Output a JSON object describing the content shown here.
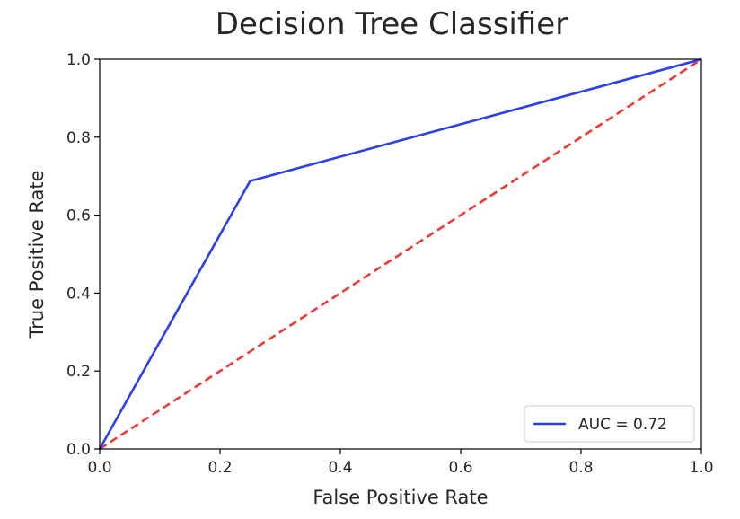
{
  "chart_data": {
    "type": "line",
    "title": "Decision Tree Classifier",
    "xlabel": "False Positive Rate",
    "ylabel": "True Positive Rate",
    "xlim": [
      0,
      1
    ],
    "ylim": [
      0,
      1
    ],
    "x_ticks": [
      0.0,
      0.2,
      0.4,
      0.6,
      0.8,
      1.0
    ],
    "y_ticks": [
      0.0,
      0.2,
      0.4,
      0.6,
      0.8,
      1.0
    ],
    "x_tick_labels": [
      "0.0",
      "0.2",
      "0.4",
      "0.6",
      "0.8",
      "1.0"
    ],
    "y_tick_labels": [
      "0.0",
      "0.2",
      "0.4",
      "0.6",
      "0.8",
      "1.0"
    ],
    "grid": false,
    "legend_position": "lower-right",
    "series": [
      {
        "name": "AUC = 0.72",
        "style": "solid",
        "color": "#2a3ef2",
        "x": [
          0.0,
          0.25,
          1.0
        ],
        "y": [
          0.0,
          0.6875,
          1.0
        ]
      },
      {
        "style": "dashed",
        "color": "#ee3a32",
        "x": [
          0.0,
          1.0
        ],
        "y": [
          0.0,
          1.0
        ]
      }
    ]
  }
}
